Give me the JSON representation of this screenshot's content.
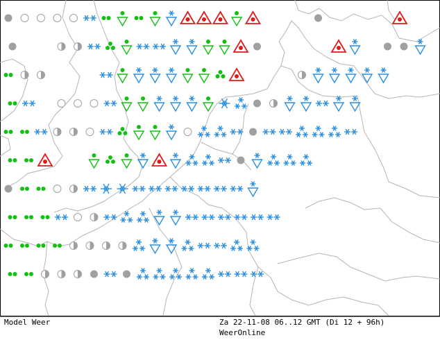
{
  "footer": {
    "product": "Model Weer",
    "valid_time": "Za 22-11-08 06..12 GMT (Di 12 + 96h)",
    "source": "WeerOnline"
  },
  "colors": {
    "snow": "#2a8fe0",
    "rain": "#12c012",
    "warning": "#e01a1a",
    "cloud": "#a0a0a0",
    "coast": "#b4b4b4"
  },
  "legend_symbols": [
    "partly-cloudy-icon",
    "cloudy-icon",
    "clear-icon",
    "rain-icon",
    "rain-shower-icon",
    "hail-shower-icon",
    "thunderstorm-warning-icon",
    "snow-icon",
    "heavy-snow-icon",
    "snow-shower-icon",
    "snowflake-icon"
  ],
  "grid": [
    [
      "cloudy",
      "clear",
      "clear",
      "clear",
      "clear",
      "snow",
      "rain",
      "rain-shower",
      "rain",
      "rain-shower",
      "snow-shower",
      "thunder",
      "thunder",
      "thunder",
      "rain-shower",
      "thunder",
      "",
      "",
      "",
      "cloudy",
      "",
      "",
      "",
      "",
      "thunder",
      "",
      ""
    ],
    [
      "cloudy",
      "",
      "",
      "partly",
      "partly",
      "snow",
      "hail-shower",
      "rain-shower",
      "snow",
      "snow",
      "snow-shower",
      "snow-shower",
      "rain-shower",
      "rain-shower",
      "thunder",
      "cloudy",
      "",
      "",
      "",
      "",
      "thunder",
      "snow-shower",
      "",
      "cloudy",
      "cloudy",
      "snow-shower"
    ],
    [
      "rain",
      "partly",
      "partly",
      "",
      "",
      "",
      "snow",
      "rain-shower",
      "snow-shower",
      "snow-shower",
      "snow-shower",
      "rain-shower",
      "rain-shower",
      "hail-shower",
      "thunder",
      "",
      "",
      "",
      "partly",
      "snow-shower",
      "snow-shower",
      "snow-shower",
      "snow-shower",
      "snow-shower"
    ],
    [
      "rain",
      "snow",
      "",
      "clear",
      "clear",
      "clear",
      "snow",
      "rain-shower",
      "rain-shower",
      "snow-shower",
      "snow-shower",
      "snow-shower",
      "rain-shower",
      "snowflake",
      "heavy-snow",
      "cloudy",
      "partly",
      "snow-shower",
      "snow-shower",
      "snow",
      "snow-shower",
      "snow-shower"
    ],
    [
      "rain",
      "rain",
      "snow",
      "partly",
      "partly",
      "clear",
      "snow",
      "hail-shower",
      "rain-shower",
      "rain-shower",
      "snow-shower",
      "clear",
      "heavy-snow",
      "heavy-snow",
      "snow",
      "cloudy",
      "snow",
      "snow",
      "heavy-snow",
      "heavy-snow",
      "heavy-snow",
      "snow"
    ],
    [
      "rain",
      "rain",
      "thunder",
      "",
      "",
      "rain-shower",
      "hail-shower",
      "rain-shower",
      "snow-shower",
      "thunder",
      "snow-shower",
      "heavy-snow",
      "heavy-snow",
      "snow",
      "cloudy",
      "snow-shower",
      "heavy-snow",
      "heavy-snow",
      "heavy-snow"
    ],
    [
      "cloudy",
      "rain",
      "rain",
      "clear",
      "partly",
      "snow",
      "snowflake",
      "snowflake",
      "snow",
      "snow",
      "snow",
      "snow",
      "snow",
      "snow",
      "snow",
      "snow-shower"
    ],
    [
      "rain",
      "rain",
      "rain",
      "snow",
      "clear",
      "partly",
      "snow",
      "heavy-snow",
      "heavy-snow",
      "snow-shower",
      "snow-shower",
      "snow",
      "snow",
      "snow",
      "snow",
      "snow",
      "snow"
    ],
    [
      "rain",
      "rain",
      "rain",
      "rain",
      "partly",
      "partly",
      "partly",
      "partly",
      "heavy-snow",
      "snow-shower",
      "snow-shower",
      "heavy-snow",
      "snow",
      "snow",
      "heavy-snow",
      "heavy-snow"
    ],
    [
      "rain",
      "rain",
      "partly",
      "partly",
      "partly",
      "cloudy",
      "snow",
      "cloudy",
      "heavy-snow",
      "heavy-snow",
      "heavy-snow",
      "heavy-snow",
      "heavy-snow",
      "snow",
      "snow",
      "snow"
    ]
  ]
}
